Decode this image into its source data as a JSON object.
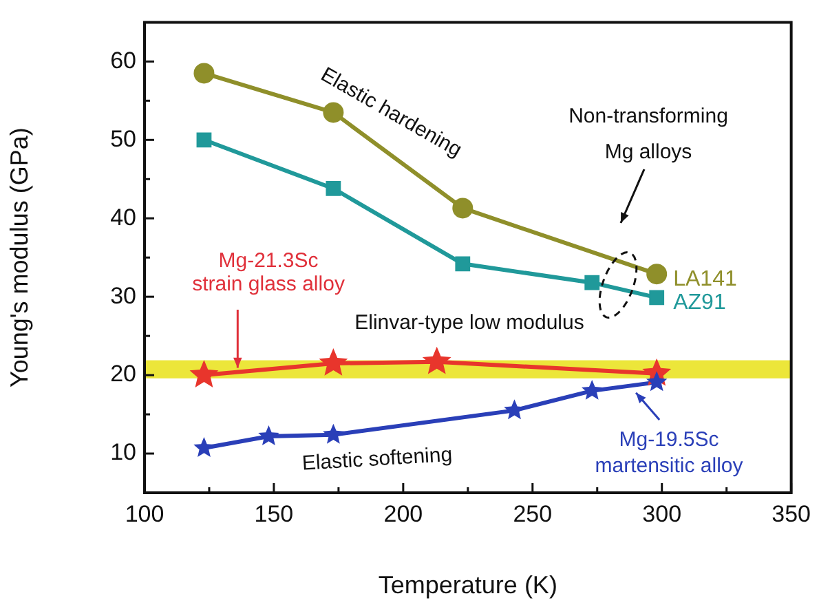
{
  "chart_data": {
    "type": "line",
    "xlabel": "Temperature (K)",
    "ylabel": "Young's modulus (GPa)",
    "xlim": [
      100,
      350
    ],
    "xticks": [
      100,
      {
        "value": 125,
        "label": null
      },
      150,
      {
        "value": 175,
        "label": null
      },
      200,
      {
        "value": 225,
        "label": null
      },
      250,
      {
        "value": 275,
        "label": null
      },
      300,
      {
        "value": 325,
        "label": null
      },
      350
    ],
    "ylim": [
      5,
      65
    ],
    "yticks": [
      {
        "value": 5,
        "label": null
      },
      10,
      {
        "value": 15,
        "label": null
      },
      20,
      {
        "value": 25,
        "label": null
      },
      30,
      {
        "value": 35,
        "label": null
      },
      40,
      {
        "value": 45,
        "label": null
      },
      50,
      {
        "value": 55,
        "label": null
      },
      60,
      {
        "value": 65,
        "label": null
      }
    ],
    "grid": false,
    "legend": false,
    "line_style": "solid",
    "series": [
      {
        "name": "LA141",
        "color": "#8f8f2a",
        "marker": "circle",
        "x": [
          123,
          173,
          223,
          298
        ],
        "values": [
          58.5,
          53.5,
          41.3,
          32.9
        ]
      },
      {
        "name": "AZ91",
        "color": "#20999a",
        "marker": "square",
        "x": [
          123,
          173,
          223,
          273,
          298
        ],
        "values": [
          50,
          43.8,
          34.2,
          31.8,
          29.9
        ]
      },
      {
        "color": "#e8352c",
        "marker": "star",
        "x": [
          123,
          173,
          213,
          298
        ],
        "values": [
          20.0,
          21.5,
          21.7,
          20.2
        ]
      },
      {
        "color": "#2a3fb8",
        "marker": "star",
        "x": [
          123,
          148,
          173,
          243,
          273,
          298
        ],
        "values": [
          10.7,
          12.2,
          12.4,
          15.5,
          18.0,
          19.1
        ]
      }
    ],
    "bands": [
      {
        "axis": "y",
        "from": 19.6,
        "to": 21.9,
        "color": "#ece63a",
        "label": "Elinvar-type low modulus"
      }
    ],
    "annotations": [
      "Elastic hardening",
      "Non-transforming\nMg alloys",
      {
        "text": "Mg-21.3Sc\nstrain glass alloy",
        "x": 136,
        "y": 20.4
      },
      "Elastic softening",
      {
        "text": "Mg-19.5Sc\nmartensitic alloy",
        "x": 290,
        "y": 18.8
      }
    ]
  }
}
